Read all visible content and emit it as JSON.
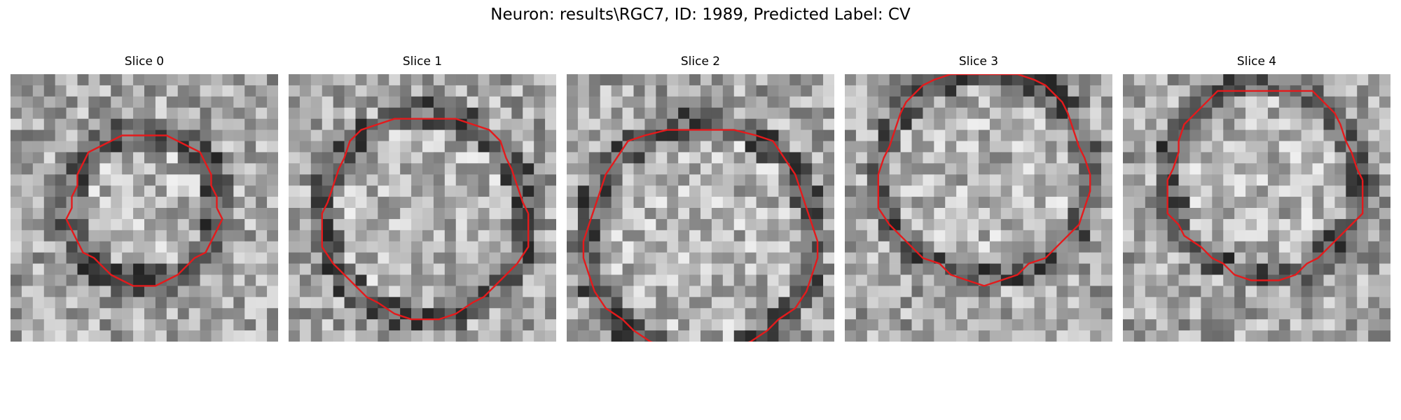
{
  "figure": {
    "title": "Neuron: results\\RGC7, ID: 1989, Predicted Label: CV"
  },
  "panels": [
    {
      "title": "Slice 0",
      "seed": 11,
      "contour_shape": "small circle"
    },
    {
      "title": "Slice 1",
      "seed": 23,
      "contour_shape": "large circle"
    },
    {
      "title": "Slice 2",
      "seed": 37,
      "contour_shape": "large circle, clipped at bottom edge"
    },
    {
      "title": "Slice 3",
      "seed": 49,
      "contour_shape": "large circle, clipped at top edge"
    },
    {
      "title": "Slice 4",
      "seed": 61,
      "contour_shape": "large circle near top"
    }
  ],
  "colors": {
    "contour": "#e41a1c"
  },
  "style": {
    "image_type": "grayscale pixel mosaic, 24x24",
    "overlay": "red contour outline"
  }
}
